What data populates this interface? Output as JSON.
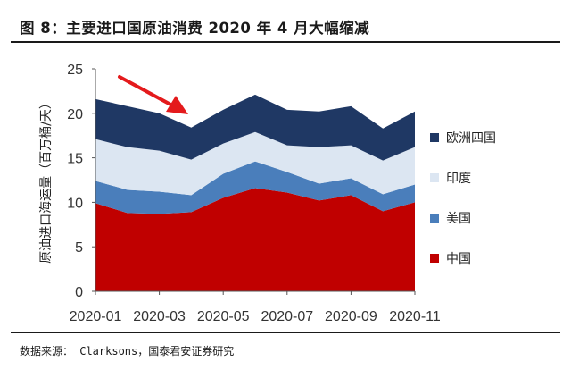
{
  "title": "图 8：主要进口国原油消费 2020 年 4 月大幅缩减",
  "source": "数据来源： Clarksons，国泰君安证券研究",
  "colors": {
    "中国": "#c00000",
    "美国": "#4a7ebb",
    "印度": "#dce6f2",
    "欧洲四国": "#1f3864",
    "arrow": "#e41a1c"
  },
  "chart_data": {
    "type": "area",
    "stacked": true,
    "x": [
      "2020-01",
      "2020-02",
      "2020-03",
      "2020-04",
      "2020-05",
      "2020-06",
      "2020-07",
      "2020-08",
      "2020-09",
      "2020-10",
      "2020-11"
    ],
    "x_tick_labels": [
      "2020-01",
      "2020-03",
      "2020-05",
      "2020-07",
      "2020-09",
      "2020-11"
    ],
    "ylabel": "原油进口海运量（百万桶/天）",
    "ylim": [
      0,
      25
    ],
    "yticks": [
      0,
      5,
      10,
      15,
      20,
      25
    ],
    "grid": false,
    "legend_position": "right",
    "series": [
      {
        "name": "中国",
        "values": [
          9.9,
          8.8,
          8.7,
          8.9,
          10.5,
          11.6,
          11.1,
          10.2,
          10.8,
          9.0,
          10.0
        ]
      },
      {
        "name": "美国",
        "values": [
          2.5,
          2.6,
          2.5,
          1.9,
          2.7,
          3.0,
          2.3,
          1.9,
          1.9,
          1.9,
          2.0
        ]
      },
      {
        "name": "印度",
        "values": [
          4.7,
          4.8,
          4.6,
          4.0,
          3.4,
          3.3,
          3.0,
          4.1,
          3.7,
          3.8,
          4.2
        ]
      },
      {
        "name": "欧洲四国",
        "values": [
          4.5,
          4.6,
          4.2,
          3.6,
          3.8,
          4.2,
          4.0,
          4.0,
          4.4,
          3.6,
          4.0
        ]
      }
    ],
    "legend_order": [
      "欧洲四国",
      "印度",
      "美国",
      "中国"
    ],
    "annotation": {
      "type": "arrow",
      "points_to": "2020-04"
    }
  }
}
